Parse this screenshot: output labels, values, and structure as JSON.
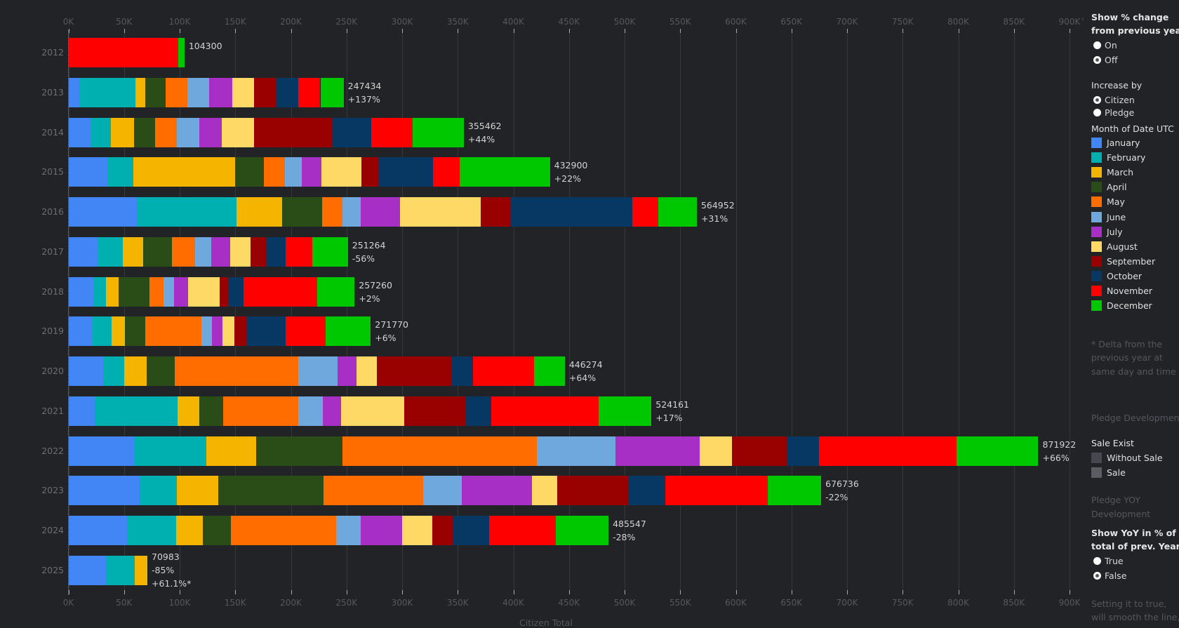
{
  "chart_data": {
    "type": "bar",
    "orientation": "horizontal",
    "stacked": true,
    "xlabel": "Citizen Total",
    "xlim": [
      0,
      900000
    ],
    "x_ticks": [
      "0K",
      "50K",
      "100K",
      "150K",
      "200K",
      "250K",
      "300K",
      "350K",
      "400K",
      "450K",
      "500K",
      "550K",
      "600K",
      "650K",
      "700K",
      "750K",
      "800K",
      "850K",
      "900K"
    ],
    "categories": [
      "2012",
      "2013",
      "2014",
      "2015",
      "2016",
      "2017",
      "2018",
      "2019",
      "2020",
      "2021",
      "2022",
      "2023",
      "2024",
      "2025"
    ],
    "months": [
      "January",
      "February",
      "March",
      "April",
      "May",
      "June",
      "July",
      "August",
      "September",
      "October",
      "November",
      "December"
    ],
    "colors": [
      "#4285f4",
      "#00b0b0",
      "#f4b400",
      "#2a4d18",
      "#ff6d01",
      "#6fa8dc",
      "#a82fc6",
      "#ffd966",
      "#990000",
      "#073763",
      "#ff0000",
      "#00c800"
    ],
    "values_k": [
      [
        0,
        0,
        0,
        0,
        0,
        0,
        0,
        0,
        0,
        0,
        98.8,
        5.5
      ],
      [
        9.5,
        50.7,
        8.8,
        18.2,
        19.6,
        19.6,
        21.0,
        19.6,
        19.6,
        20.3,
        19.6,
        20.9
      ],
      [
        19.6,
        18.3,
        20.9,
        19.0,
        19.6,
        20.2,
        20.3,
        29.1,
        70.3,
        35.2,
        37.2,
        45.8
      ],
      [
        35.2,
        22.9,
        92.0,
        25.7,
        18.9,
        14.9,
        17.6,
        36.5,
        14.9,
        49.3,
        23.7,
        81.3
      ],
      [
        61.5,
        89.3,
        41.2,
        35.9,
        18.2,
        16.9,
        35.2,
        72.3,
        26.4,
        110.2,
        23.0,
        34.9
      ],
      [
        26.4,
        22.3,
        18.2,
        26.4,
        20.3,
        14.9,
        16.9,
        18.2,
        14.9,
        16.9,
        23.7,
        32.2
      ],
      [
        23.0,
        10.8,
        11.5,
        27.7,
        12.2,
        9.5,
        12.8,
        28.4,
        7.4,
        14.2,
        66.3,
        33.5
      ],
      [
        21.6,
        16.9,
        12.2,
        18.3,
        50.7,
        9.4,
        9.5,
        10.8,
        10.8,
        35.2,
        35.8,
        40.6
      ],
      [
        31.1,
        18.9,
        20.3,
        25.0,
        111.6,
        35.2,
        16.9,
        18.2,
        67.0,
        19.6,
        54.7,
        27.8
      ],
      [
        23.7,
        74.3,
        19.6,
        21.7,
        67.6,
        21.6,
        16.3,
        57.4,
        55.5,
        22.3,
        96.7,
        47.5
      ],
      [
        58.8,
        64.9,
        45.3,
        77.1,
        175.1,
        70.3,
        75.8,
        29.0,
        50.1,
        28.4,
        123.7,
        73.4
      ],
      [
        64.2,
        33.2,
        37.1,
        94.7,
        89.9,
        34.5,
        62.9,
        23.0,
        64.2,
        33.1,
        92.0,
        47.9
      ],
      [
        52.7,
        44.0,
        24.3,
        25.0,
        94.7,
        22.3,
        37.2,
        27.1,
        18.9,
        31.8,
        60.1,
        47.4
      ],
      [
        33.8,
        25.7,
        11.5,
        0,
        0,
        0,
        0,
        0,
        0,
        0,
        0,
        0
      ]
    ],
    "totals": [
      104300,
      247434,
      355462,
      432900,
      564952,
      251264,
      257260,
      271770,
      446274,
      524161,
      871922,
      676736,
      485547,
      70983
    ],
    "labels": [
      [
        "104300"
      ],
      [
        "247434",
        "+137%"
      ],
      [
        "355462",
        "+44%"
      ],
      [
        "432900",
        "+22%"
      ],
      [
        "564952",
        "+31%"
      ],
      [
        "251264",
        "-56%"
      ],
      [
        "257260",
        "+2%"
      ],
      [
        "271770",
        "+6%"
      ],
      [
        "446274",
        "+64%"
      ],
      [
        "524161",
        "+17%"
      ],
      [
        "871922",
        "+66%"
      ],
      [
        "676736",
        "-22%"
      ],
      [
        "485547",
        "-28%"
      ],
      [
        "70983",
        "-85%",
        "+61.1%*"
      ]
    ],
    "grid": true,
    "legend_position": "right"
  },
  "panel": {
    "pct_change_title": [
      "Show % change",
      "from previous year"
    ],
    "pct_change_options": [
      {
        "label": "On",
        "selected": false
      },
      {
        "label": "Off",
        "selected": true
      }
    ],
    "increase_title": "Increase by",
    "increase_options": [
      {
        "label": "Citizen",
        "selected": true
      },
      {
        "label": "Pledge",
        "selected": false
      }
    ],
    "legend_title": "Month of Date UTC",
    "delta_note": [
      "* Delta from the",
      "previous year at",
      "same day and time"
    ],
    "pledge_development": "Pledge Development",
    "sale_title": "Sale Exist",
    "sale_items": [
      {
        "label": "Without Sale",
        "color": "#45484e"
      },
      {
        "label": "Sale",
        "color": "#5a5d63"
      }
    ],
    "pledge_yoy": [
      "Pledge YOY",
      "Development"
    ],
    "yoy_title": [
      "Show YoY in % of",
      "total of prev. Year"
    ],
    "yoy_options": [
      {
        "label": "True",
        "selected": false
      },
      {
        "label": "False",
        "selected": true
      }
    ],
    "smooth_note": [
      "Setting it to true,",
      "will smooth the line,"
    ]
  }
}
